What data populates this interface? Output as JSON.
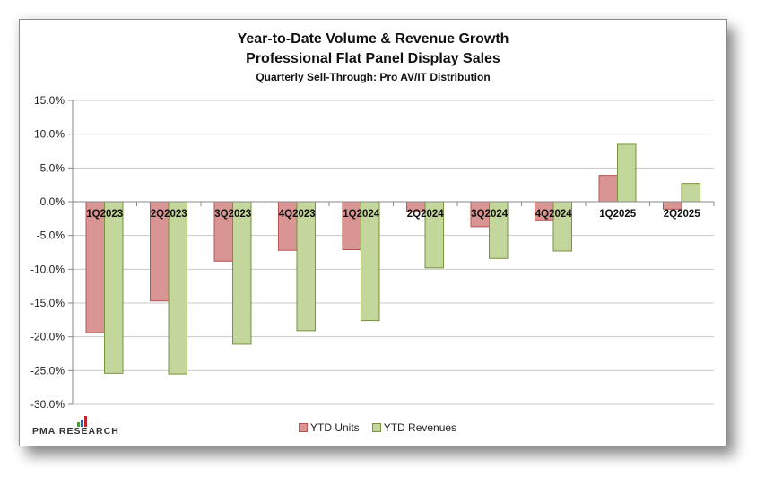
{
  "chart_data": {
    "type": "bar",
    "title": "Year-to-Date Volume & Revenue Growth",
    "subtitle": "Professional Flat Panel Display Sales",
    "subsubtitle": "Quarterly Sell-Through: Pro AV/IT Distribution",
    "xlabel": "",
    "ylabel": "",
    "ylim": [
      -30,
      15
    ],
    "ytick_step": 5,
    "yticks": [
      "15.0%",
      "10.0%",
      "5.0%",
      "0.0%",
      "-5.0%",
      "-10.0%",
      "-15.0%",
      "-20.0%",
      "-25.0%",
      "-30.0%"
    ],
    "grid": true,
    "legend_position": "bottom",
    "categories": [
      "1Q2023",
      "2Q2023",
      "3Q2023",
      "4Q2023",
      "1Q2024",
      "2Q2024",
      "3Q2024",
      "4Q2024",
      "1Q2025",
      "2Q2025"
    ],
    "series": [
      {
        "name": "YTD Units",
        "color": "#d99594",
        "stroke": "#b85450",
        "values": [
          -19.4,
          -14.7,
          -8.8,
          -7.2,
          -7.1,
          -1.5,
          -3.7,
          -2.7,
          3.9,
          -1.1
        ]
      },
      {
        "name": "YTD Revenues",
        "color": "#c3d69b",
        "stroke": "#77933c",
        "values": [
          -25.4,
          -25.5,
          -21.1,
          -19.1,
          -17.6,
          -9.8,
          -8.4,
          -7.3,
          8.5,
          2.7
        ]
      }
    ]
  },
  "branding": {
    "logo_text": "PMA RESEARCH",
    "logo_colors": [
      "#4f9a3a",
      "#2e5fa8",
      "#c0262d"
    ]
  }
}
